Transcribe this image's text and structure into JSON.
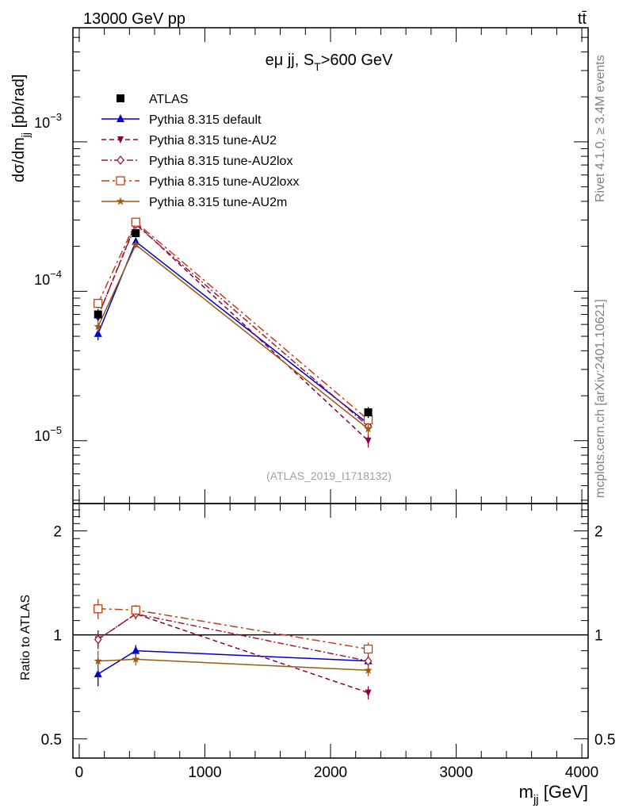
{
  "header": {
    "left": "13000 GeV pp",
    "right": "tt̄"
  },
  "side_text": {
    "rivet": "Rivet 4.1.0, ≥ 3.4M events",
    "mcplots": "mcplots.cern.ch [arXiv:2401.10621]"
  },
  "colors": {
    "atlas": "#000000",
    "default": "#0000cc",
    "au2": "#8b0040",
    "au2lox": "#a01a3a",
    "au2loxx": "#c0401a",
    "au2m": "#9b5a10",
    "watermark": "#a0a0a0"
  },
  "chart_data": [
    {
      "type": "line",
      "panel": "main",
      "title": "eμ jj, S_T>600 GeV",
      "title_parts": {
        "pre": "eμ jj, S",
        "sub": "T",
        "post": ">600 GeV"
      },
      "ylabel": "dσ/dm_jj [pb/rad]",
      "ylabel_parts": {
        "pre": "dσ/dm",
        "sub": "jj",
        "post": " [pb/rad]"
      },
      "yscale": "log",
      "ylim": [
        3.8e-06,
        0.0058
      ],
      "xlim": [
        -50,
        4050
      ],
      "ytick_labels": [
        {
          "value": 1e-05,
          "base": "10",
          "exp": "−5"
        },
        {
          "value": 0.0001,
          "base": "10",
          "exp": "−4"
        },
        {
          "value": 0.001,
          "base": "10",
          "exp": "−3"
        }
      ],
      "watermark": "(ATLAS_2019_I1718132)",
      "legend_position": "top-left",
      "x": [
        150,
        450,
        2300
      ],
      "series": [
        {
          "name": "ATLAS",
          "key": "atlas",
          "values": [
            7e-05,
            0.000245,
            1.55e-05
          ],
          "errors": [
            6e-06,
            1.2e-05,
            1.3e-06
          ],
          "marker": "square-filled",
          "line": "none"
        },
        {
          "name": "Pythia 8.315 default",
          "key": "default",
          "values": [
            5.2e-05,
            0.000215,
            1.3e-05
          ],
          "errors": [
            5e-06,
            1e-05,
            1.2e-06
          ],
          "marker": "triangle-up-filled",
          "line": "solid"
        },
        {
          "name": "Pythia 8.315 tune-AU2",
          "key": "au2",
          "values": [
            6.8e-05,
            0.000285,
            1e-05
          ],
          "errors": [
            5e-06,
            1.2e-05,
            1e-06
          ],
          "marker": "triangle-down-filled",
          "line": "dashed"
        },
        {
          "name": "Pythia 8.315 tune-AU2lox",
          "key": "au2lox",
          "values": [
            6.8e-05,
            0.00028,
            1.25e-05
          ],
          "errors": [
            5e-06,
            1.2e-05,
            1.1e-06
          ],
          "marker": "diamond-open",
          "line": "dashdot"
        },
        {
          "name": "Pythia 8.315 tune-AU2loxx",
          "key": "au2loxx",
          "values": [
            8.3e-05,
            0.00029,
            1.38e-05
          ],
          "errors": [
            6e-06,
            1.2e-05,
            1.2e-06
          ],
          "marker": "square-open",
          "line": "dashdotlong"
        },
        {
          "name": "Pythia 8.315 tune-AU2m",
          "key": "au2m",
          "values": [
            5.8e-05,
            0.000205,
            1.2e-05
          ],
          "errors": [
            5e-06,
            1e-05,
            1.1e-06
          ],
          "marker": "star",
          "line": "solid"
        }
      ]
    },
    {
      "type": "line",
      "panel": "ratio",
      "ylabel": "Ratio to ATLAS",
      "xlabel": "m_jj [GeV]",
      "xlabel_parts": {
        "pre": "m",
        "sub": "jj",
        "post": " [GeV]"
      },
      "yscale": "log",
      "ylim": [
        0.44,
        2.4
      ],
      "xlim": [
        -50,
        4050
      ],
      "ytick_labels": [
        {
          "value": 0.5,
          "label": "0.5"
        },
        {
          "value": 1,
          "label": "1"
        },
        {
          "value": 2,
          "label": "2"
        }
      ],
      "xtick_labels": [
        {
          "value": 0,
          "label": "0"
        },
        {
          "value": 1000,
          "label": "1000"
        },
        {
          "value": 2000,
          "label": "2000"
        },
        {
          "value": 3000,
          "label": "3000"
        },
        {
          "value": 4000,
          "label": "4000"
        }
      ],
      "reference_line": 1,
      "x": [
        150,
        450,
        2300
      ],
      "series": [
        {
          "name": "Pythia 8.315 default",
          "key": "default",
          "values": [
            0.77,
            0.9,
            0.84
          ],
          "errors": [
            0.06,
            0.035,
            0.03
          ]
        },
        {
          "name": "Pythia 8.315 tune-AU2",
          "key": "au2",
          "values": [
            0.97,
            1.15,
            0.68
          ],
          "errors": [
            0.06,
            0.04,
            0.03
          ]
        },
        {
          "name": "Pythia 8.315 tune-AU2lox",
          "key": "au2lox",
          "values": [
            0.97,
            1.15,
            0.84
          ],
          "errors": [
            0.06,
            0.04,
            0.03
          ]
        },
        {
          "name": "Pythia 8.315 tune-AU2loxx",
          "key": "au2loxx",
          "values": [
            1.19,
            1.18,
            0.91
          ],
          "errors": [
            0.08,
            0.04,
            0.04
          ]
        },
        {
          "name": "Pythia 8.315 tune-AU2m",
          "key": "au2m",
          "values": [
            0.84,
            0.85,
            0.79
          ],
          "errors": [
            0.06,
            0.035,
            0.03
          ]
        }
      ]
    }
  ]
}
